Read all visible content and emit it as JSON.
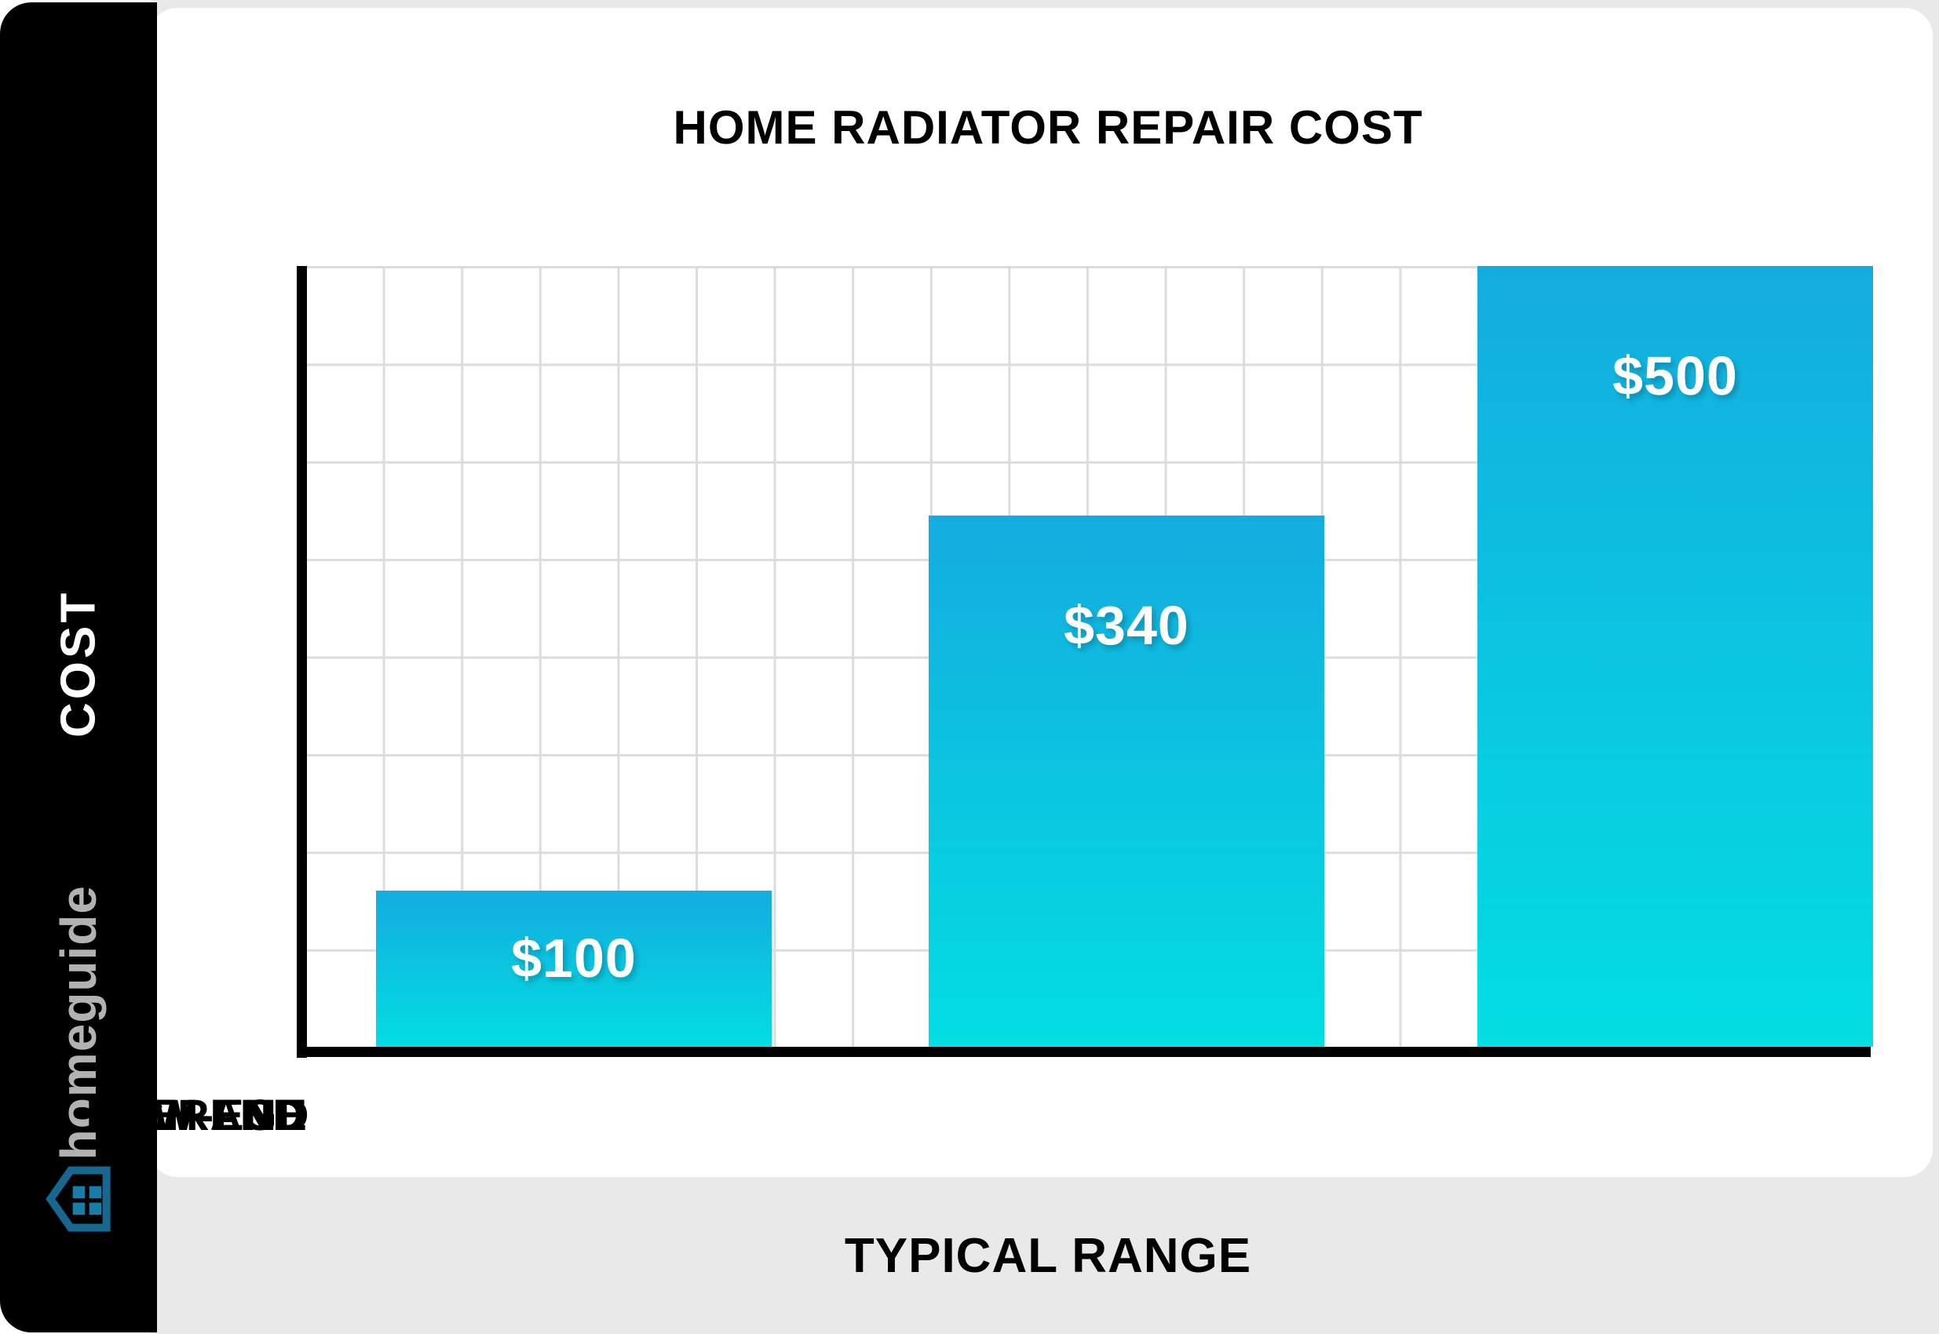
{
  "brand": {
    "name": "homeguide",
    "logo_icon": "homeguide-house-icon",
    "logo_color": "#B2B2B2",
    "icon_outline_color": "#17678F",
    "icon_window_color": "#197CA8"
  },
  "chart_data": {
    "type": "bar",
    "title": "HOME RADIATOR REPAIR COST",
    "categories": [
      "LOW-END",
      "AVERAGE",
      "HIGH-END"
    ],
    "values": [
      100,
      340,
      500
    ],
    "value_labels": [
      "$100",
      "$340",
      "$500"
    ],
    "xlabel": "TYPICAL RANGE",
    "ylabel": "COST",
    "ylim": [
      0,
      500
    ],
    "grid": true,
    "legend": "none",
    "bar_gradient_top": "#14ACDF",
    "bar_gradient_bottom": "#02DEE2",
    "axis_color": "#000000",
    "grid_color": "#DCDCDC",
    "background_band_color": "#E9E9E9",
    "sidebar_color": "#000000"
  }
}
